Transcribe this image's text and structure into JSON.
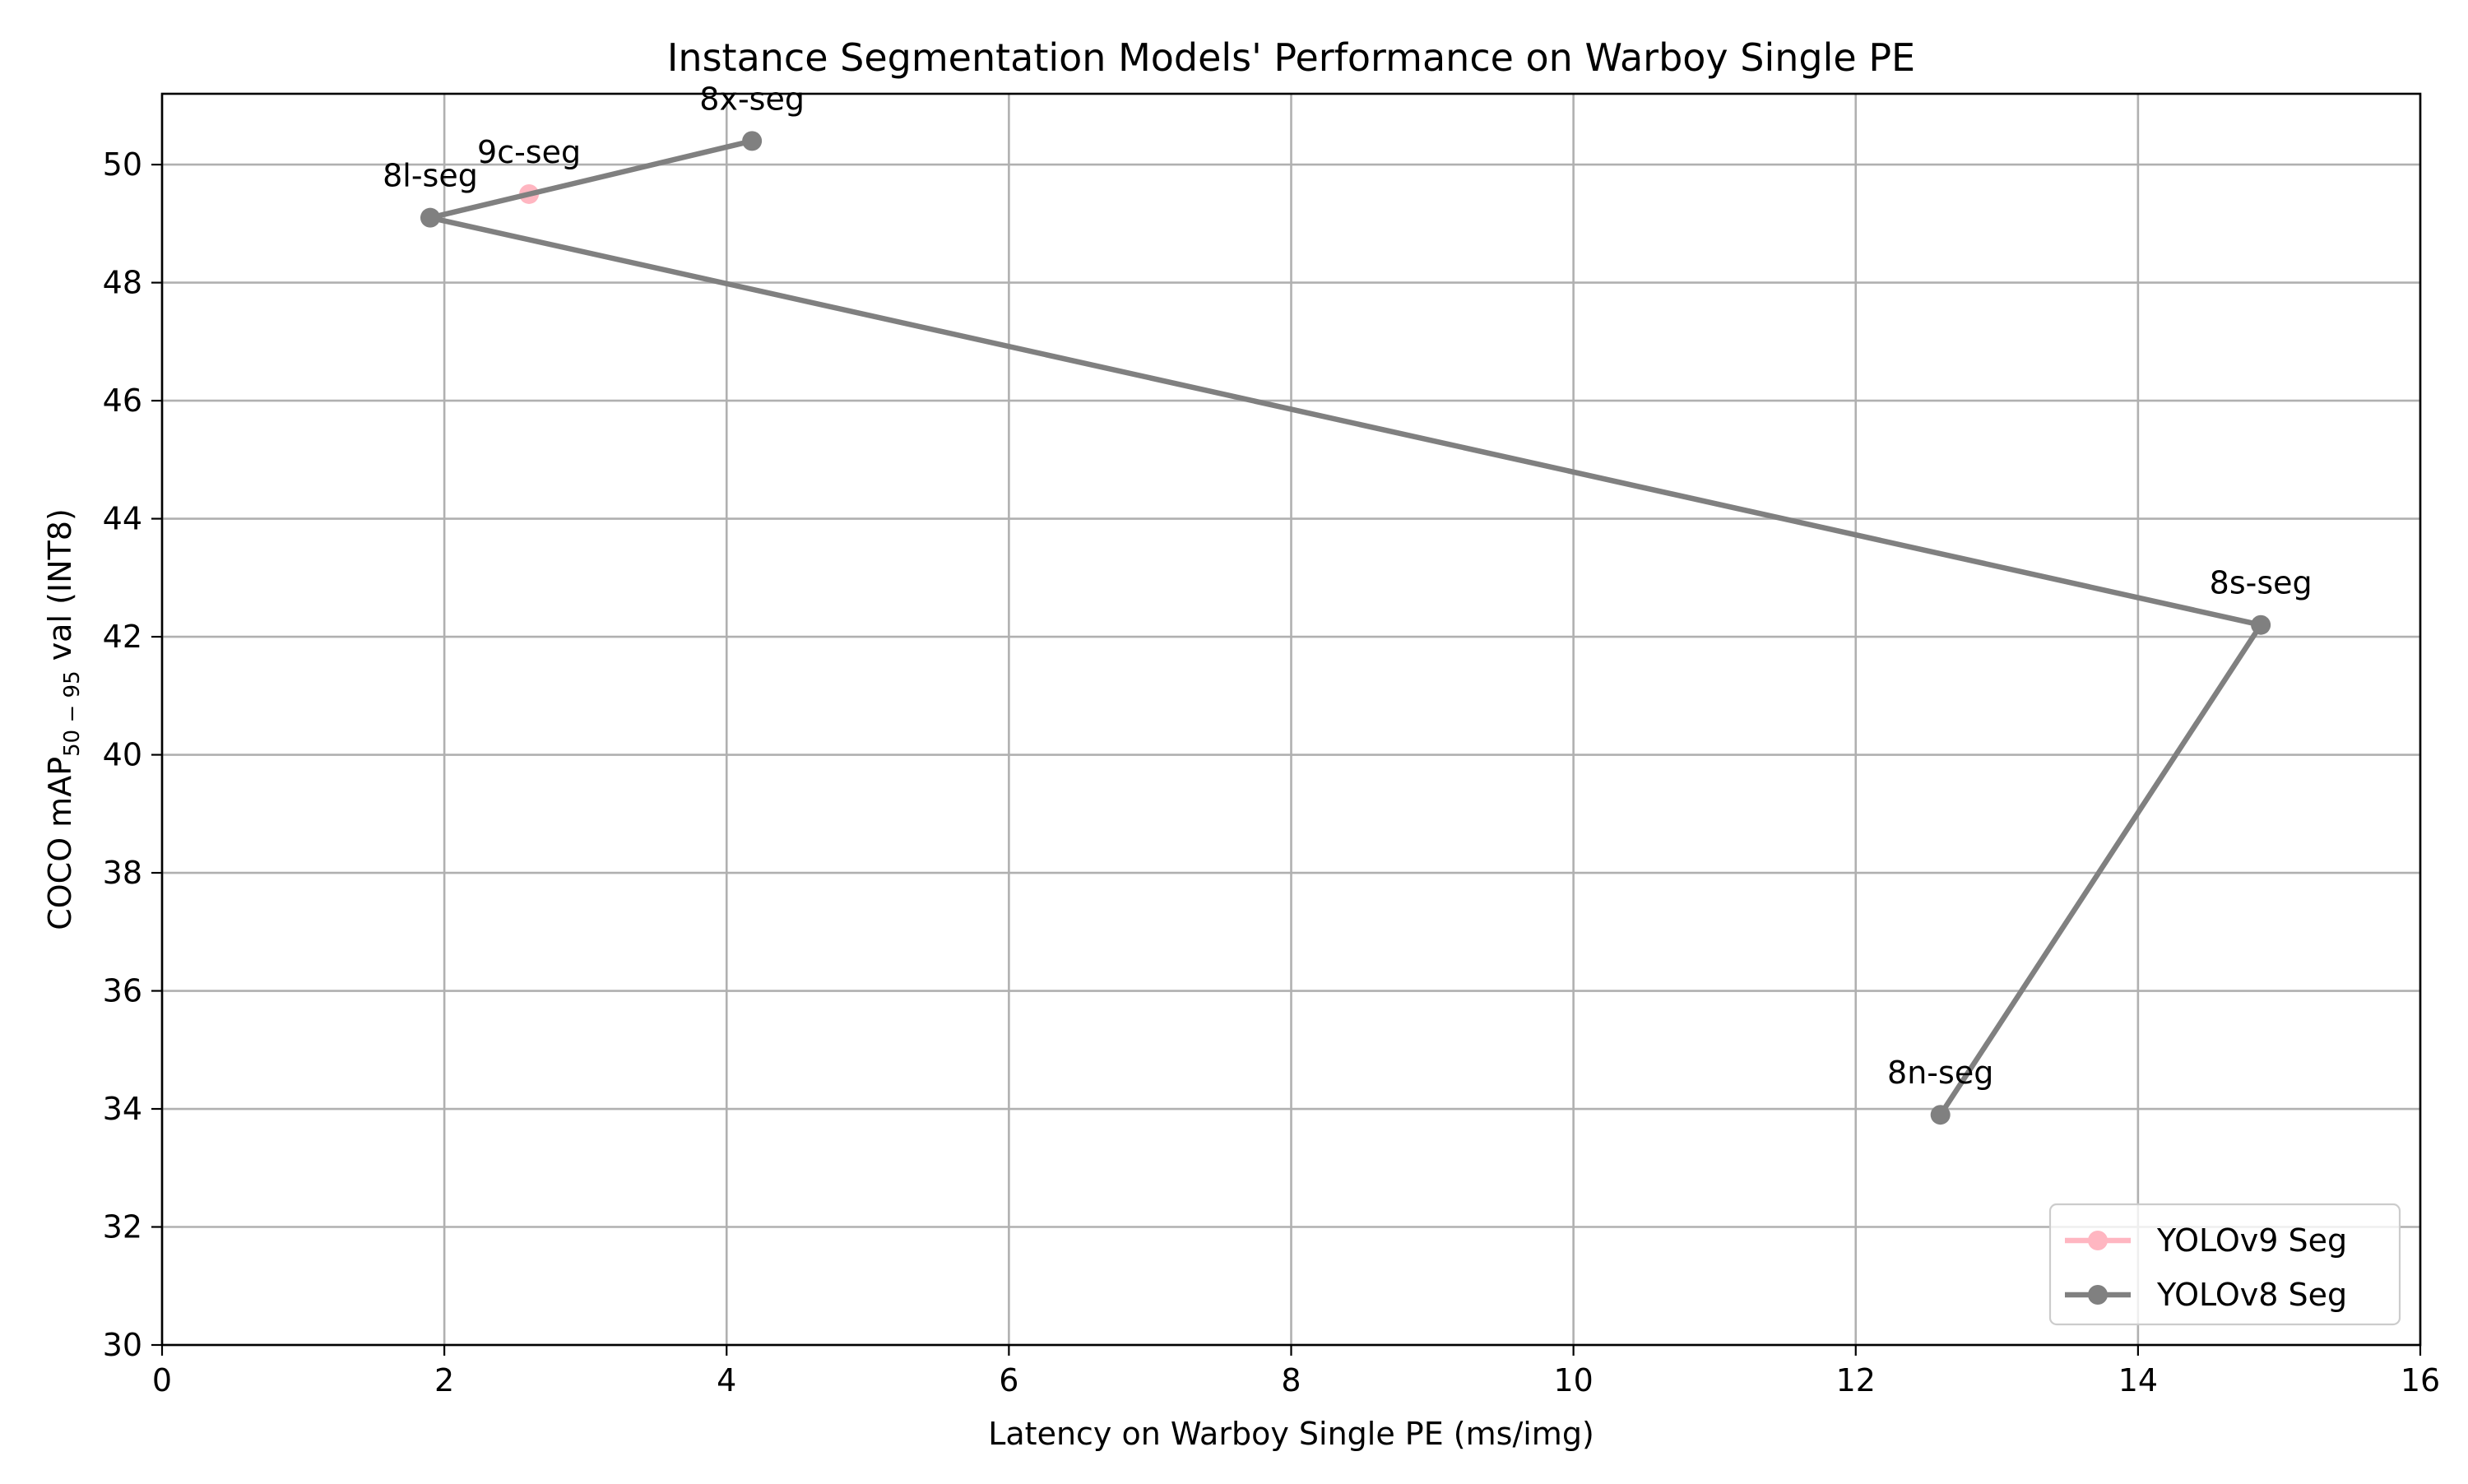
{
  "chart_data": {
    "type": "line",
    "title": "Instance Segmentation Models' Performance on Warboy Single PE",
    "xlabel": "Latency on Warboy Single PE (ms/img)",
    "ylabel": {
      "prefix": "COCO mAP",
      "subscript": "50 − 95",
      "suffix": " val (INT8)"
    },
    "xlim": [
      0,
      16
    ],
    "ylim": [
      30,
      51.2
    ],
    "x_ticks": [
      0,
      2,
      4,
      6,
      8,
      10,
      12,
      14,
      16
    ],
    "y_ticks": [
      30,
      32,
      34,
      36,
      38,
      40,
      42,
      44,
      46,
      48,
      50
    ],
    "grid": true,
    "legend_position": "bottom-right",
    "series": [
      {
        "name": "YOLOv9 Seg",
        "color": "#ffb6c1",
        "points": [
          {
            "x": 2.6,
            "y": 49.5,
            "label": "9c-seg"
          }
        ]
      },
      {
        "name": "YOLOv8 Seg",
        "color": "#808080",
        "points": [
          {
            "x": 4.18,
            "y": 50.4,
            "label": "8x-seg"
          },
          {
            "x": 1.9,
            "y": 49.1,
            "label": "8l-seg"
          },
          {
            "x": 14.87,
            "y": 42.2,
            "label": "8s-seg"
          },
          {
            "x": 12.6,
            "y": 33.9,
            "label": "8n-seg"
          }
        ]
      }
    ]
  }
}
